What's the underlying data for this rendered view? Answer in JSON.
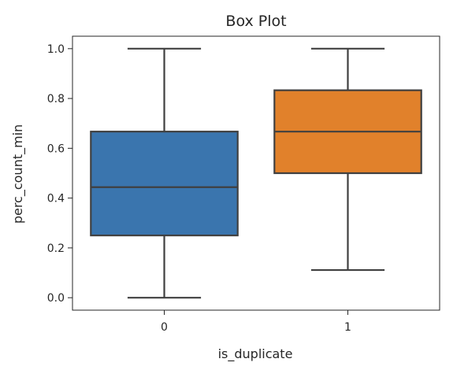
{
  "chart_data": {
    "type": "box",
    "title": "Box Plot",
    "xlabel": "is_duplicate",
    "ylabel": "perc_count_min",
    "categories": [
      "0",
      "1"
    ],
    "boxes": [
      {
        "category": "0",
        "whisker_low": 0.0,
        "q1": 0.25,
        "median": 0.444,
        "q3": 0.667,
        "whisker_high": 1.0,
        "color": "#3a75ae"
      },
      {
        "category": "1",
        "whisker_low": 0.111,
        "q1": 0.5,
        "median": 0.667,
        "q3": 0.833,
        "whisker_high": 1.0,
        "color": "#e1812b"
      }
    ],
    "ylim": [
      -0.05,
      1.05
    ],
    "yticks": [
      0.0,
      0.2,
      0.4,
      0.6,
      0.8,
      1.0
    ],
    "ytick_labels": [
      "0.0",
      "0.2",
      "0.4",
      "0.6",
      "0.8",
      "1.0"
    ],
    "grid": false,
    "line_color": "#404040"
  }
}
